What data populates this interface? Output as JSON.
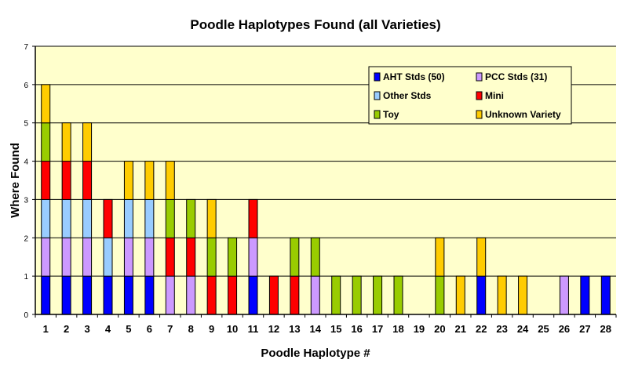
{
  "chart_data": {
    "type": "bar",
    "stacked": true,
    "title": "Poodle Haplotypes Found (all Varieties)",
    "xlabel": "Poodle Haplotype #",
    "ylabel": "Where Found",
    "ylim": [
      0,
      7
    ],
    "yticks": [
      "0",
      "1",
      "2",
      "3",
      "4",
      "5",
      "6",
      "7"
    ],
    "grid": true,
    "legend_position": "top-right",
    "categories": [
      "1",
      "2",
      "3",
      "4",
      "5",
      "6",
      "7",
      "8",
      "9",
      "10",
      "11",
      "12",
      "13",
      "14",
      "15",
      "16",
      "17",
      "18",
      "19",
      "20",
      "21",
      "22",
      "23",
      "24",
      "25",
      "26",
      "27",
      "28"
    ],
    "series": [
      {
        "name": "AHT Stds (50)",
        "color": "#0000FF",
        "values": [
          1,
          1,
          1,
          1,
          1,
          1,
          0,
          0,
          0,
          0,
          1,
          0,
          0,
          0,
          0,
          0,
          0,
          0,
          0,
          0,
          0,
          1,
          0,
          0,
          0,
          0,
          1,
          1
        ]
      },
      {
        "name": "PCC Stds (31)",
        "color": "#CC99FF",
        "values": [
          1,
          1,
          1,
          0,
          1,
          1,
          1,
          1,
          0,
          0,
          1,
          0,
          0,
          1,
          0,
          0,
          0,
          0,
          0,
          0,
          0,
          0,
          0,
          0,
          0,
          1,
          0,
          0
        ]
      },
      {
        "name": "Other Stds",
        "color": "#99CCFF",
        "values": [
          1,
          1,
          1,
          1,
          1,
          1,
          0,
          0,
          0,
          0,
          0,
          0,
          0,
          0,
          0,
          0,
          0,
          0,
          0,
          0,
          0,
          0,
          0,
          0,
          0,
          0,
          0,
          0
        ]
      },
      {
        "name": "Mini",
        "color": "#FF0000",
        "values": [
          1,
          1,
          1,
          1,
          0,
          0,
          1,
          1,
          1,
          1,
          1,
          1,
          1,
          0,
          0,
          0,
          0,
          0,
          0,
          0,
          0,
          0,
          0,
          0,
          0,
          0,
          0,
          0
        ]
      },
      {
        "name": "Toy",
        "color": "#99CC00",
        "values": [
          1,
          0,
          0,
          0,
          0,
          0,
          1,
          1,
          1,
          1,
          0,
          0,
          1,
          1,
          1,
          1,
          1,
          1,
          0,
          1,
          0,
          0,
          0,
          0,
          0,
          0,
          0,
          0
        ]
      },
      {
        "name": "Unknown Variety",
        "color": "#FFCC00",
        "values": [
          1,
          1,
          1,
          0,
          1,
          1,
          1,
          0,
          1,
          0,
          0,
          0,
          0,
          0,
          0,
          0,
          0,
          0,
          0,
          1,
          1,
          1,
          1,
          1,
          0,
          0,
          0,
          0
        ]
      }
    ]
  }
}
